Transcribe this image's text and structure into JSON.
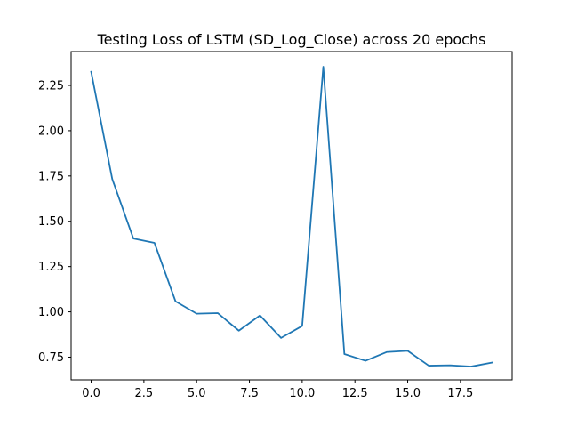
{
  "chart_data": {
    "type": "line",
    "title": "Testing Loss of LSTM (SD_Log_Close) across 20 epochs",
    "xlabel": "",
    "ylabel": "",
    "x": [
      0,
      1,
      2,
      3,
      4,
      5,
      6,
      7,
      8,
      9,
      10,
      11,
      12,
      13,
      14,
      15,
      16,
      17,
      18,
      19
    ],
    "series": [
      {
        "values": [
          2.325,
          1.733,
          1.405,
          1.381,
          1.058,
          0.99,
          0.993,
          0.896,
          0.98,
          0.856,
          0.922,
          2.353,
          0.767,
          0.73,
          0.778,
          0.785,
          0.703,
          0.705,
          0.698,
          0.72
        ],
        "color": "#1f77b4"
      }
    ],
    "xlim": [
      -0.95,
      19.95
    ],
    "ylim": [
      0.6247,
      2.4366
    ],
    "xticks": [
      0.0,
      2.5,
      5.0,
      7.5,
      10.0,
      12.5,
      15.0,
      17.5
    ],
    "xtick_labels": [
      "0.0",
      "2.5",
      "5.0",
      "7.5",
      "10.0",
      "12.5",
      "15.0",
      "17.5"
    ],
    "yticks": [
      0.75,
      1.0,
      1.25,
      1.5,
      1.75,
      2.0,
      2.25
    ],
    "ytick_labels": [
      "0.75",
      "1.00",
      "1.25",
      "1.50",
      "1.75",
      "2.00",
      "2.25"
    ],
    "grid": false,
    "legend": "none"
  }
}
